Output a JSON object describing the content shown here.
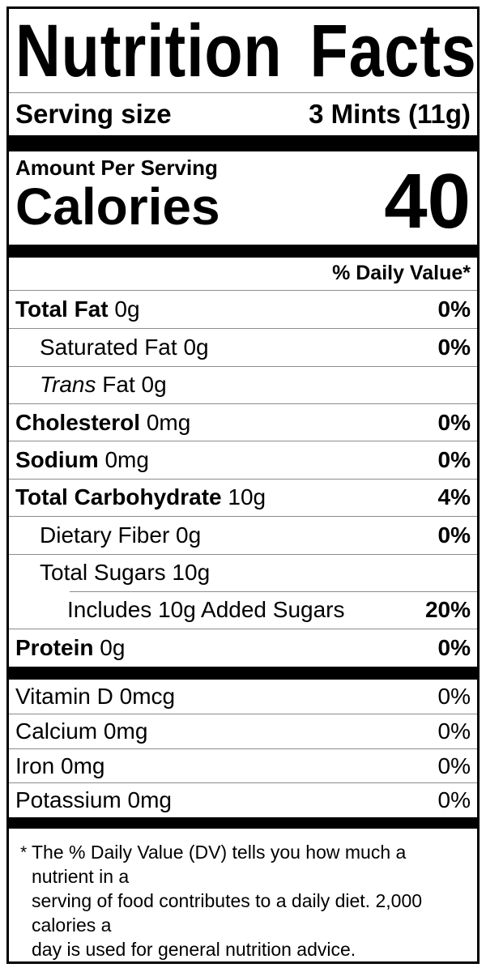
{
  "title": "Nutrition Facts",
  "serving": {
    "label": "Serving size",
    "value": "3 Mints (11g)"
  },
  "calories_section": {
    "heading": "Amount Per Serving",
    "label": "Calories",
    "value": "40"
  },
  "daily_value_header": "% Daily Value*",
  "nutrients": [
    {
      "name": "Total Fat",
      "amount": "0g",
      "dv": "0%"
    },
    {
      "name": "Saturated Fat",
      "amount": "0g",
      "dv": "0%"
    },
    {
      "name_italic": "Trans",
      "name": "Fat",
      "amount": "0g",
      "dv": ""
    },
    {
      "name": "Cholesterol",
      "amount": "0mg",
      "dv": "0%"
    },
    {
      "name": "Sodium",
      "amount": "0mg",
      "dv": "0%"
    },
    {
      "name": "Total Carbohydrate",
      "amount": "10g",
      "dv": "4%"
    },
    {
      "name": "Dietary Fiber",
      "amount": "0g",
      "dv": "0%"
    },
    {
      "name": "Total Sugars",
      "amount": "10g",
      "dv": ""
    },
    {
      "name": "Includes 10g Added Sugars",
      "amount": "",
      "dv": "20%"
    },
    {
      "name": "Protein",
      "amount": "0g",
      "dv": "0%"
    }
  ],
  "vitamins": [
    {
      "name": "Vitamin D",
      "amount": "0mcg",
      "dv": "0%"
    },
    {
      "name": "Calcium",
      "amount": "0mg",
      "dv": "0%"
    },
    {
      "name": "Iron",
      "amount": "0mg",
      "dv": "0%"
    },
    {
      "name": "Potassium",
      "amount": "0mg",
      "dv": "0%"
    }
  ],
  "footnote": {
    "marker": "*",
    "text": "The % Daily Value (DV) tells you how much a nutrient in a\nserving of food contributes to a daily diet. 2,000 calories a\nday is used for general nutrition advice."
  },
  "colors": {
    "text": "#000000",
    "background": "#ffffff",
    "bar": "#000000",
    "hairline": "#8c8c8c"
  }
}
